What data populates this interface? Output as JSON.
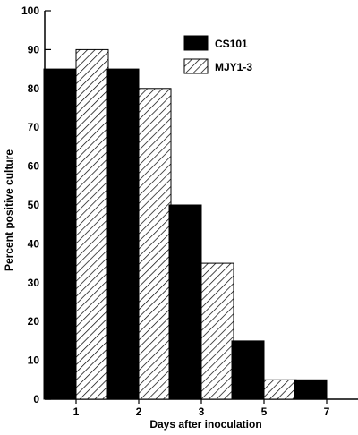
{
  "chart_data": {
    "type": "bar",
    "title": "",
    "xlabel": "Days after inoculation",
    "ylabel": "Percent positive culture",
    "categories": [
      "1",
      "2",
      "3",
      "5",
      "7"
    ],
    "series": [
      {
        "name": "CS101",
        "values": [
          85,
          85,
          50,
          15,
          5
        ],
        "fill": "solid",
        "color": "#000000"
      },
      {
        "name": "MJY1-3",
        "values": [
          90,
          80,
          35,
          5,
          0
        ],
        "fill": "hatched",
        "color": "#000000"
      }
    ],
    "ylim": [
      0,
      100
    ],
    "yticks": [
      0,
      10,
      20,
      30,
      40,
      50,
      60,
      70,
      80,
      90,
      100
    ],
    "grid": false,
    "legend_position": "top-right"
  }
}
